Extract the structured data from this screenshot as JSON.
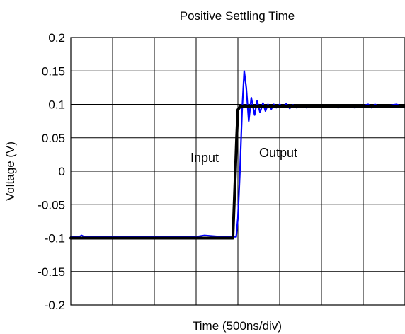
{
  "chart_data": {
    "type": "line",
    "title": "Positive Settling Time",
    "xlabel": "Time (500ns/div)",
    "ylabel": "Voltage (V)",
    "ylim": [
      -0.2,
      0.2
    ],
    "yticks": [
      "0.2",
      "0.15",
      "0.1",
      "0.05",
      "0",
      "-0.05",
      "-0.1",
      "-0.15",
      "-0.2"
    ],
    "x_divisions": 8,
    "xlim": [
      0,
      4000
    ],
    "x_unit": "ns",
    "grid": true,
    "annotations": [
      {
        "text": "Input",
        "color": "#000000"
      },
      {
        "text": "Output",
        "color": "#0000ff"
      }
    ],
    "series": [
      {
        "name": "Input",
        "color": "#000000",
        "x": [
          0,
          1940,
          1955,
          1970,
          1985,
          2000,
          2030,
          4000
        ],
        "values": [
          -0.1,
          -0.1,
          -0.05,
          0.0,
          0.05,
          0.092,
          0.097,
          0.097
        ]
      },
      {
        "name": "Output",
        "color": "#0000ff",
        "x": [
          0,
          100,
          130,
          160,
          200,
          1000,
          1500,
          1600,
          1800,
          1980,
          2000,
          2025,
          2050,
          2075,
          2100,
          2130,
          2160,
          2200,
          2230,
          2265,
          2300,
          2330,
          2360,
          2400,
          2430,
          2460,
          2500,
          2540,
          2580,
          2620,
          2660,
          2700,
          2760,
          2820,
          2900,
          3000,
          3100,
          3200,
          3300,
          3400,
          3500,
          3560,
          3600,
          3640,
          3700,
          3800,
          3900,
          4000
        ],
        "values": [
          -0.098,
          -0.098,
          -0.096,
          -0.098,
          -0.098,
          -0.098,
          -0.098,
          -0.096,
          -0.098,
          -0.098,
          -0.07,
          0.0,
          0.09,
          0.15,
          0.125,
          0.075,
          0.11,
          0.084,
          0.105,
          0.088,
          0.102,
          0.09,
          0.1,
          0.093,
          0.1,
          0.095,
          0.1,
          0.096,
          0.101,
          0.094,
          0.099,
          0.095,
          0.098,
          0.095,
          0.097,
          0.096,
          0.098,
          0.095,
          0.097,
          0.095,
          0.098,
          0.1,
          0.095,
          0.1,
          0.096,
          0.098,
          0.1,
          0.095
        ]
      }
    ]
  }
}
